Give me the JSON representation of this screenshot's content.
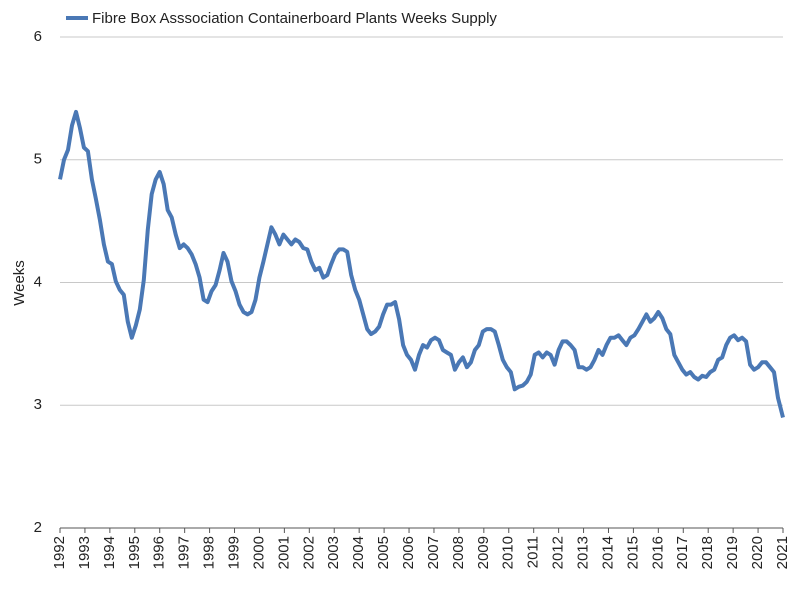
{
  "chart_data": {
    "type": "line",
    "series": [
      {
        "name": "Fibre Box Asssociation Containerboard Plants Weeks Supply",
        "color": "#4a78b5",
        "x": [
          1992,
          1992.16,
          1992.32,
          1992.48,
          1992.64,
          1992.8,
          1992.96,
          1993.12,
          1993.28,
          1993.44,
          1993.6,
          1993.76,
          1993.92,
          1994.08,
          1994.24,
          1994.4,
          1994.56,
          1994.72,
          1994.88,
          1995.04,
          1995.2,
          1995.36,
          1995.52,
          1995.68,
          1995.84,
          1996,
          1996.16,
          1996.32,
          1996.48,
          1996.64,
          1996.8,
          1996.96,
          1997.12,
          1997.28,
          1997.44,
          1997.6,
          1997.76,
          1997.92,
          1998.08,
          1998.24,
          1998.4,
          1998.56,
          1998.72,
          1998.88,
          1999.04,
          1999.2,
          1999.36,
          1999.52,
          1999.68,
          1999.84,
          2000,
          2000.16,
          2000.32,
          2000.48,
          2000.64,
          2000.8,
          2000.96,
          2001.12,
          2001.28,
          2001.44,
          2001.6,
          2001.76,
          2001.92,
          2002.08,
          2002.24,
          2002.4,
          2002.56,
          2002.72,
          2002.88,
          2003.04,
          2003.2,
          2003.36,
          2003.52,
          2003.68,
          2003.84,
          2004,
          2004.16,
          2004.32,
          2004.48,
          2004.64,
          2004.8,
          2004.96,
          2005.12,
          2005.28,
          2005.44,
          2005.6,
          2005.76,
          2005.92,
          2006.08,
          2006.24,
          2006.4,
          2006.56,
          2006.72,
          2006.88,
          2007.04,
          2007.2,
          2007.36,
          2007.52,
          2007.68,
          2007.84,
          2008,
          2008.16,
          2008.32,
          2008.48,
          2008.64,
          2008.8,
          2008.96,
          2009.12,
          2009.28,
          2009.44,
          2009.6,
          2009.76,
          2009.92,
          2010.08,
          2010.24,
          2010.4,
          2010.56,
          2010.72,
          2010.88,
          2011.04,
          2011.2,
          2011.36,
          2011.52,
          2011.68,
          2011.84,
          2012,
          2012.16,
          2012.32,
          2012.48,
          2012.64,
          2012.8,
          2012.96,
          2013.12,
          2013.28,
          2013.44,
          2013.6,
          2013.76,
          2013.92,
          2014.08,
          2014.24,
          2014.4,
          2014.56,
          2014.72,
          2014.88,
          2015.04,
          2015.2,
          2015.36,
          2015.52,
          2015.68,
          2015.84,
          2016,
          2016.16,
          2016.32,
          2016.48,
          2016.64,
          2016.8,
          2016.96,
          2017.12,
          2017.28,
          2017.44,
          2017.6,
          2017.76,
          2017.92,
          2018.08,
          2018.24,
          2018.4,
          2018.56,
          2018.72,
          2018.88,
          2019.04,
          2019.2,
          2019.36,
          2019.52,
          2019.68,
          2019.84,
          2020,
          2020.16,
          2020.32,
          2020.48,
          2020.64,
          2020.8,
          2021
        ],
        "values": [
          4.84,
          5.0,
          5.08,
          5.28,
          5.39,
          5.26,
          5.1,
          5.07,
          4.84,
          4.68,
          4.51,
          4.31,
          4.17,
          4.15,
          4.01,
          3.94,
          3.9,
          3.68,
          3.55,
          3.65,
          3.78,
          4.02,
          4.43,
          4.72,
          4.84,
          4.9,
          4.8,
          4.59,
          4.53,
          4.39,
          4.28,
          4.31,
          4.28,
          4.23,
          4.15,
          4.04,
          3.86,
          3.84,
          3.93,
          3.98,
          4.1,
          4.24,
          4.17,
          4.01,
          3.93,
          3.82,
          3.76,
          3.74,
          3.76,
          3.86,
          4.04,
          4.17,
          4.31,
          4.45,
          4.39,
          4.31,
          4.39,
          4.35,
          4.31,
          4.35,
          4.33,
          4.28,
          4.27,
          4.17,
          4.1,
          4.12,
          4.04,
          4.06,
          4.15,
          4.23,
          4.27,
          4.27,
          4.25,
          4.06,
          3.94,
          3.86,
          3.74,
          3.62,
          3.58,
          3.6,
          3.64,
          3.74,
          3.82,
          3.82,
          3.84,
          3.7,
          3.49,
          3.41,
          3.37,
          3.29,
          3.41,
          3.49,
          3.47,
          3.53,
          3.55,
          3.53,
          3.45,
          3.43,
          3.41,
          3.29,
          3.35,
          3.39,
          3.31,
          3.35,
          3.45,
          3.49,
          3.6,
          3.62,
          3.62,
          3.6,
          3.49,
          3.37,
          3.31,
          3.27,
          3.13,
          3.15,
          3.16,
          3.19,
          3.25,
          3.41,
          3.43,
          3.39,
          3.43,
          3.41,
          3.33,
          3.45,
          3.52,
          3.52,
          3.49,
          3.45,
          3.31,
          3.31,
          3.29,
          3.31,
          3.37,
          3.45,
          3.41,
          3.49,
          3.55,
          3.55,
          3.57,
          3.53,
          3.49,
          3.55,
          3.57,
          3.62,
          3.68,
          3.74,
          3.68,
          3.71,
          3.76,
          3.71,
          3.62,
          3.58,
          3.41,
          3.35,
          3.29,
          3.25,
          3.27,
          3.23,
          3.21,
          3.24,
          3.23,
          3.27,
          3.29,
          3.37,
          3.39,
          3.49,
          3.55,
          3.57,
          3.53,
          3.55,
          3.52,
          3.33,
          3.29,
          3.31,
          3.35,
          3.35,
          3.31,
          3.27,
          3.06,
          2.9
        ]
      }
    ],
    "ylabel": "Weeks",
    "xlim": [
      1992,
      2021
    ],
    "xticks": [
      1992,
      1993,
      1994,
      1995,
      1996,
      1997,
      1998,
      1999,
      2000,
      2001,
      2002,
      2003,
      2004,
      2005,
      2006,
      2007,
      2008,
      2009,
      2010,
      2011,
      2012,
      2013,
      2014,
      2015,
      2016,
      2017,
      2018,
      2019,
      2020,
      2021
    ],
    "ylim": [
      2,
      6
    ],
    "yticks": [
      2,
      3,
      4,
      5,
      6
    ],
    "grid": true,
    "legend": "top"
  }
}
